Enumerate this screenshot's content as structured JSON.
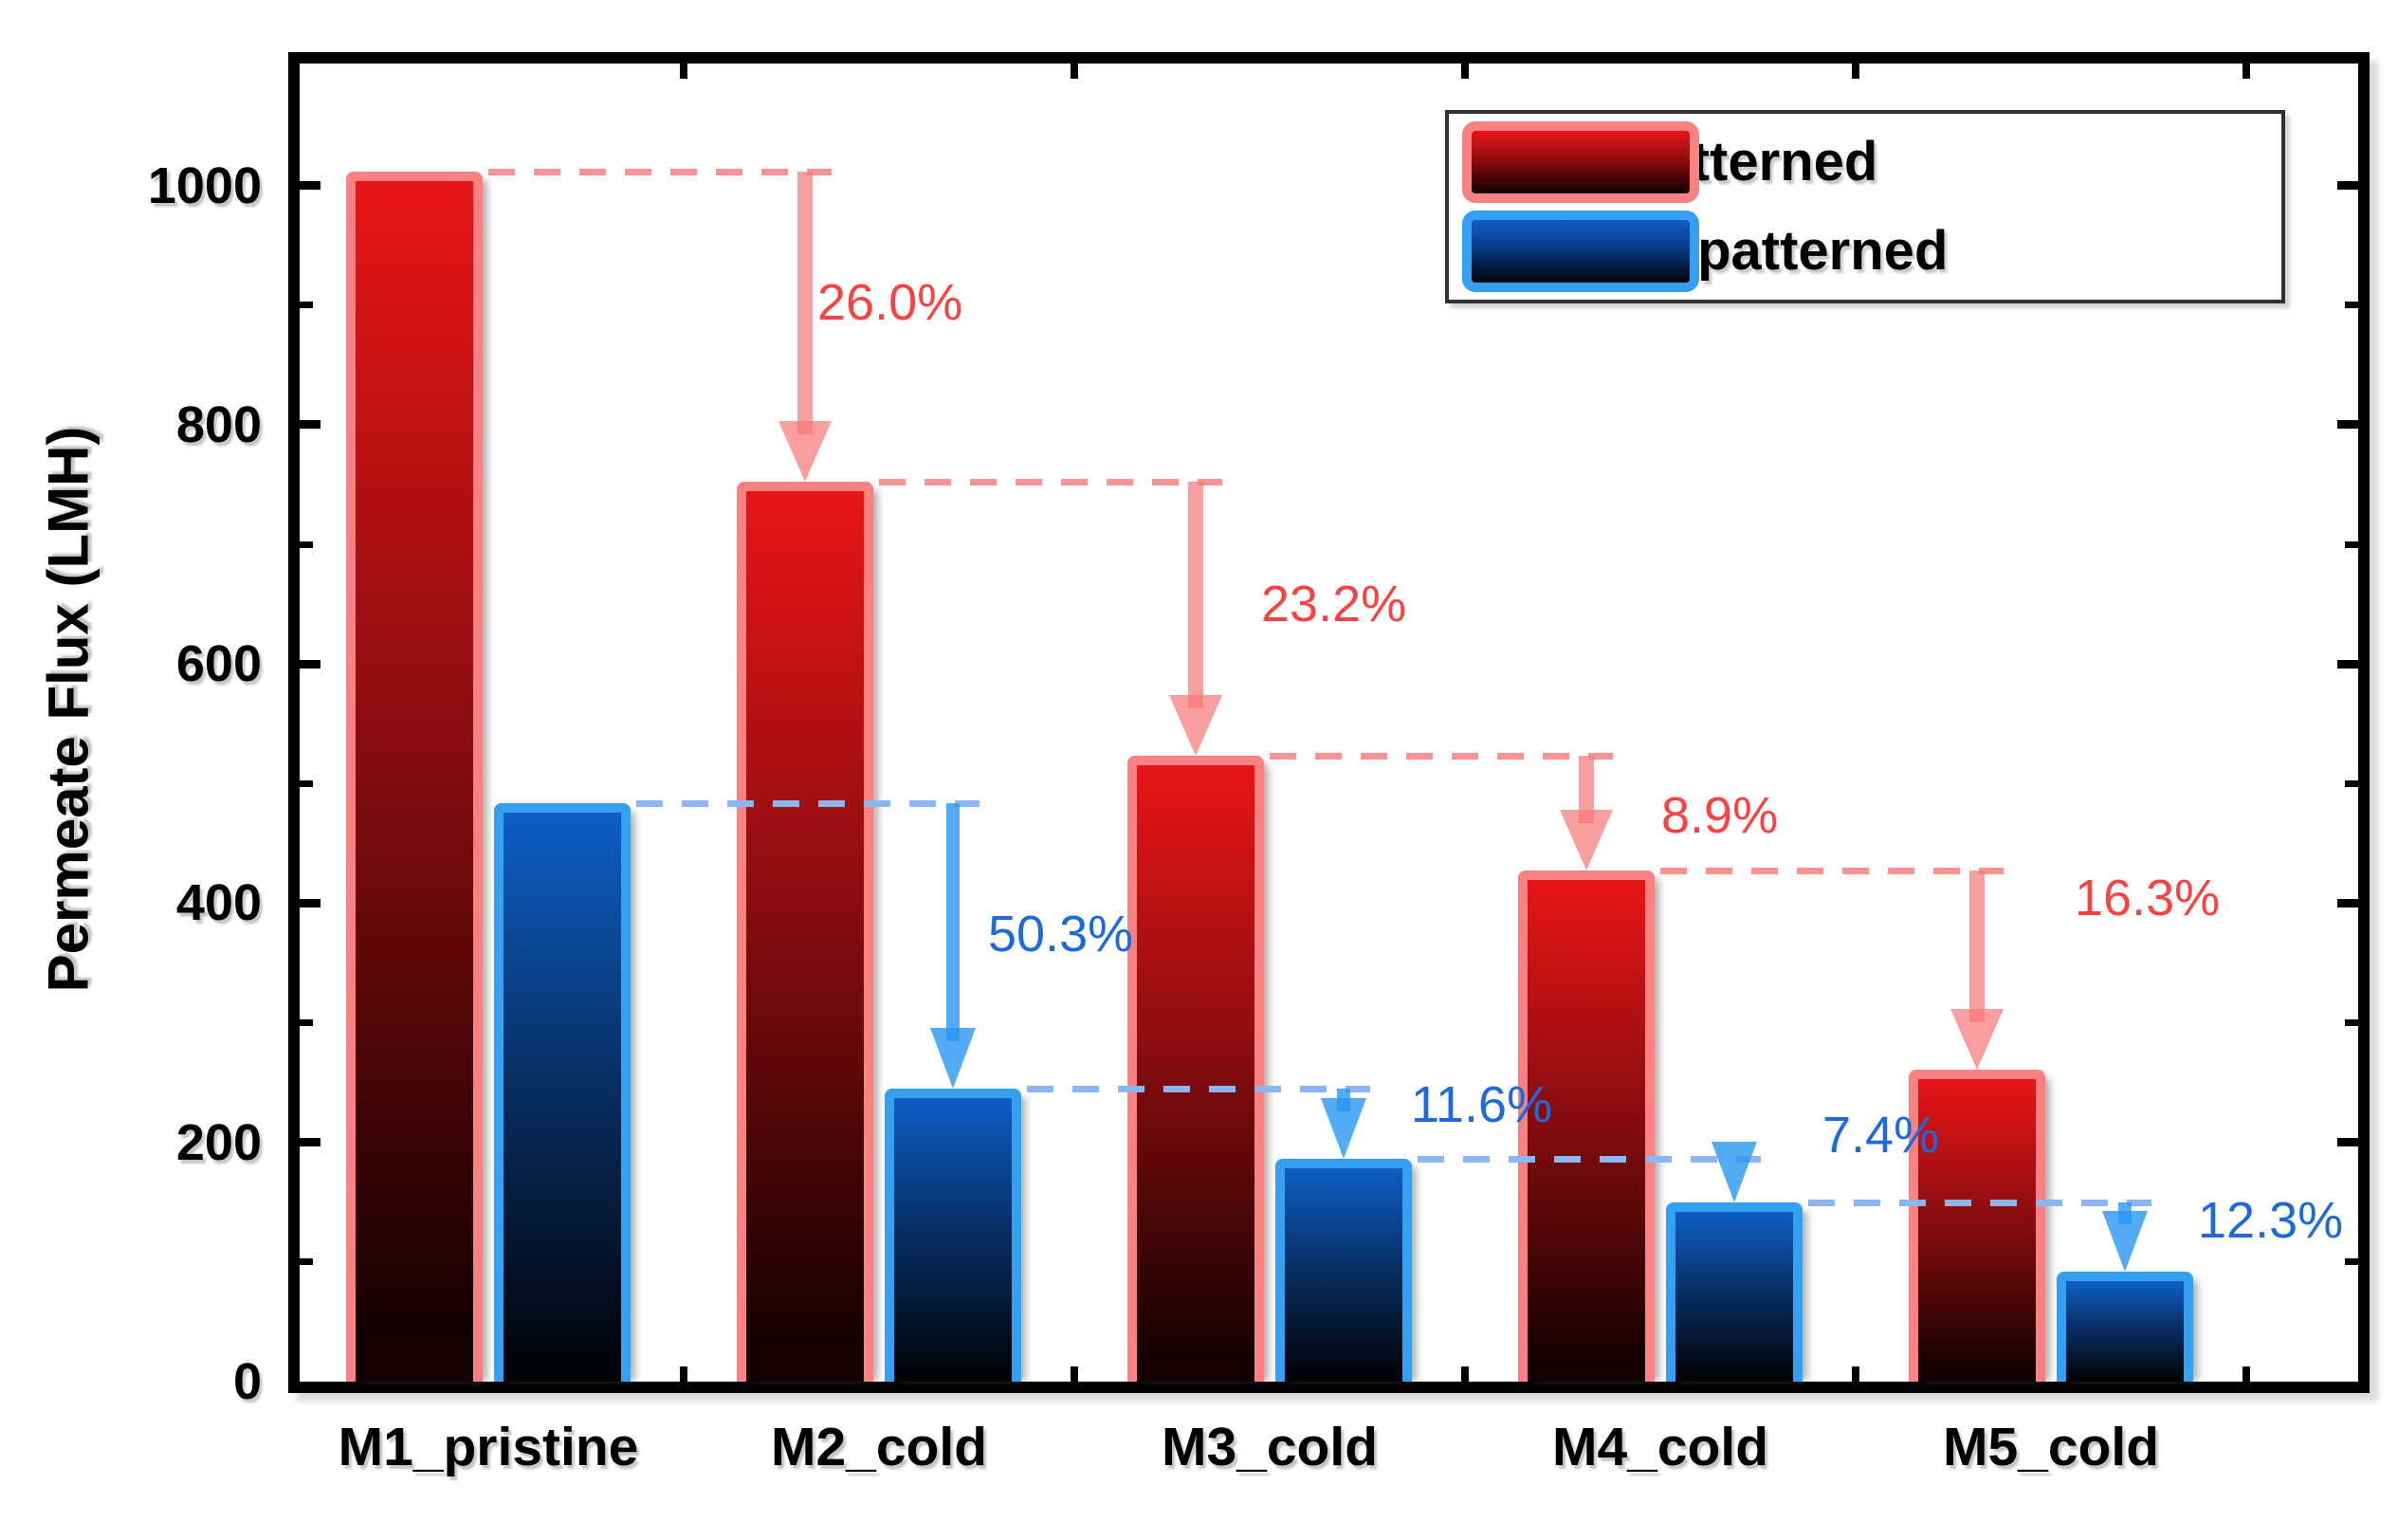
{
  "chart_data": {
    "type": "bar",
    "title": "",
    "xlabel": "",
    "ylabel": "Permeate Flux (LMH)",
    "ylim": [
      0,
      1100
    ],
    "yticks_major": [
      0,
      200,
      400,
      600,
      800,
      1000
    ],
    "yticks_minor": [
      100,
      300,
      500,
      700,
      900
    ],
    "grid": false,
    "legend_position": "top-right-inside",
    "categories": [
      "M1_pristine",
      "M2_cold",
      "M3_cold",
      "M4_cold",
      "M5_cold"
    ],
    "series": [
      {
        "name": "HFPS Patterned",
        "values": [
          1012,
          752,
          523,
          427,
          261
        ],
        "unit": "LMH",
        "bar_border_color": "#f98181",
        "bar_gradient_top": "#e91517",
        "bar_gradient_mid": "#8c0d10",
        "bar_gradient_bottom": "#140000",
        "drop_percent_labels": [
          "26.0%",
          "23.2%",
          "8.9%",
          "16.3%"
        ],
        "annotation_text_color": "#f94343",
        "connector_color": "#fb9393",
        "arrow_color": "rgba(246,120,120,0.72)"
      },
      {
        "name": "HFPS Unpatterned",
        "values": [
          484,
          245,
          186,
          150,
          92
        ],
        "unit": "LMH",
        "bar_border_color": "#359ff2",
        "bar_gradient_top": "#0e5ec4",
        "bar_gradient_mid": "#083067",
        "bar_gradient_bottom": "#010409",
        "drop_percent_labels": [
          "50.3%",
          "11.6%",
          "7.4%",
          "12.3%"
        ],
        "annotation_text_color": "#1e6ada",
        "connector_color": "#8ab7f3",
        "arrow_color": "rgba(40,150,240,0.8)"
      }
    ]
  }
}
